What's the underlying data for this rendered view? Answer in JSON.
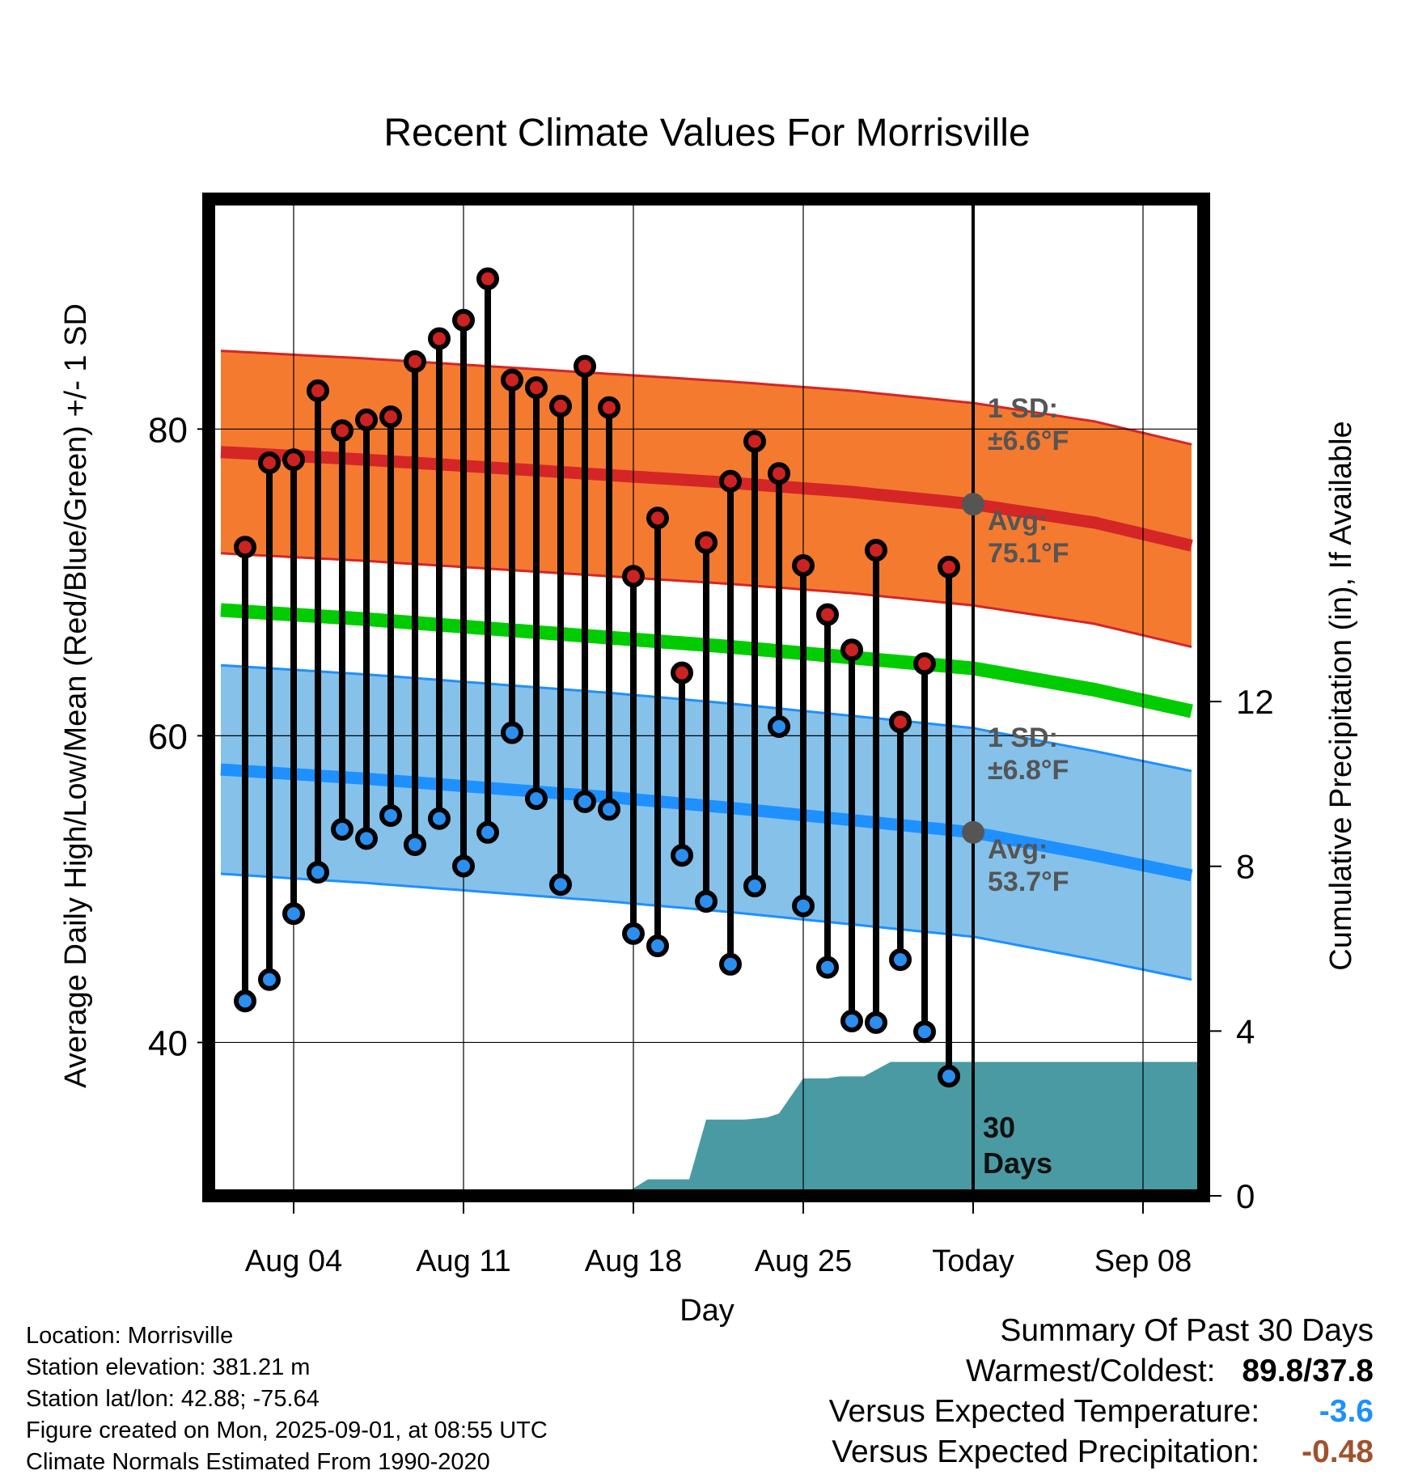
{
  "chart_data": {
    "type": "line",
    "title": "Recent Climate Values For Morrisville",
    "xlabel": "Day",
    "ylabel": "Average Daily High/Low/Mean (Red/Blue/Green) +/- 1 SD",
    "y2label": "Cumulative Precipitation (in), If Available",
    "xlim": [
      -1.5,
      39.5
    ],
    "ylim": [
      30,
      95
    ],
    "y2lim": [
      0,
      24.2
    ],
    "x_tick_positions": [
      2,
      9,
      16,
      23,
      30,
      37
    ],
    "x_tick_labels": [
      "Aug 04",
      "Aug 11",
      "Aug 18",
      "Aug 25",
      "Today",
      "Sep 08"
    ],
    "y_ticks": [
      40,
      60,
      80
    ],
    "y2_ticks": [
      0,
      4,
      8,
      12
    ],
    "today_x": 30,
    "today_label": "30 Days",
    "grid": true,
    "daily_highs": [
      72.3,
      77.8,
      78.0,
      82.5,
      79.9,
      80.6,
      80.8,
      84.4,
      85.9,
      87.1,
      89.8,
      83.2,
      82.7,
      81.5,
      84.1,
      81.4,
      70.4,
      74.2,
      64.1,
      72.6,
      76.6,
      79.2,
      77.1,
      71.1,
      67.9,
      65.6,
      72.1,
      60.9,
      64.7,
      71.0
    ],
    "daily_lows": [
      42.7,
      44.1,
      48.4,
      51.1,
      53.9,
      53.3,
      54.8,
      52.9,
      54.6,
      51.5,
      53.7,
      60.2,
      55.9,
      50.3,
      55.7,
      55.2,
      47.1,
      46.3,
      52.2,
      49.2,
      45.1,
      50.2,
      60.6,
      48.9,
      44.9,
      41.4,
      41.3,
      45.4,
      40.7,
      37.8
    ],
    "normal_high": {
      "name": "Avg: 75.1°F",
      "x": [
        -1,
        5,
        10,
        15,
        20,
        25,
        30,
        35,
        39
      ],
      "mean": [
        78.5,
        78.0,
        77.5,
        77.0,
        76.5,
        75.9,
        75.1,
        73.9,
        72.4
      ],
      "sd": 6.6,
      "sd_label": "1 SD: ±6.6°F"
    },
    "normal_low": {
      "name": "Avg: 53.7°F",
      "x": [
        -1,
        5,
        10,
        15,
        20,
        25,
        30,
        35,
        39
      ],
      "mean": [
        57.8,
        57.2,
        56.6,
        56.0,
        55.3,
        54.5,
        53.7,
        52.2,
        50.9
      ],
      "sd": 6.8,
      "sd_label": "1 SD: ±6.8°F"
    },
    "normal_mean": {
      "x": [
        -1,
        5,
        10,
        15,
        20,
        25,
        30,
        35,
        39
      ],
      "values": [
        68.2,
        67.6,
        67.0,
        66.4,
        65.8,
        65.1,
        64.4,
        63.0,
        61.6
      ]
    },
    "cumulative_precip": {
      "x": [
        -1,
        12.5,
        13.5,
        14.5,
        15.5,
        16.6,
        17.5,
        18.3,
        19.0,
        19.5,
        20.6,
        21.5,
        22.0,
        23.0,
        24.0,
        24.5,
        25.5,
        26.6,
        27.6,
        39.5
      ],
      "values": [
        0,
        0,
        0,
        0,
        0,
        0.4,
        0.4,
        0.4,
        1.85,
        1.85,
        1.85,
        1.9,
        2.0,
        2.85,
        2.85,
        2.9,
        2.9,
        3.25,
        3.25,
        3.25
      ]
    }
  },
  "info": {
    "location": "Location: Morrisville",
    "elevation": "Station elevation: 381.21 m",
    "latlon": "Station lat/lon: 42.88; -75.64",
    "created": "Figure created on Mon, 2025-09-01, at 08:55 UTC",
    "normals": "Climate Normals Estimated From 1990-2020"
  },
  "summary": {
    "title": "Summary Of Past 30 Days",
    "warmest_label": "Warmest/Coldest:",
    "warmest_value": "89.8/37.8",
    "temp_label": "Versus Expected Temperature:",
    "temp_value": "-3.6",
    "temp_color": "#1e90ff",
    "precip_label": "Versus Expected Precipitation:",
    "precip_value": "-0.48",
    "precip_color": "#a0522d"
  },
  "colors": {
    "high_band": "#f47a30",
    "high_line": "#d42626",
    "low_band": "#85c1e9",
    "low_line": "#1e90ff",
    "mean_line": "#00cc00",
    "precip": "#4a9aa3",
    "high_dot": "#cc2222",
    "low_dot": "#2b8ff0",
    "marker": "#555555"
  }
}
